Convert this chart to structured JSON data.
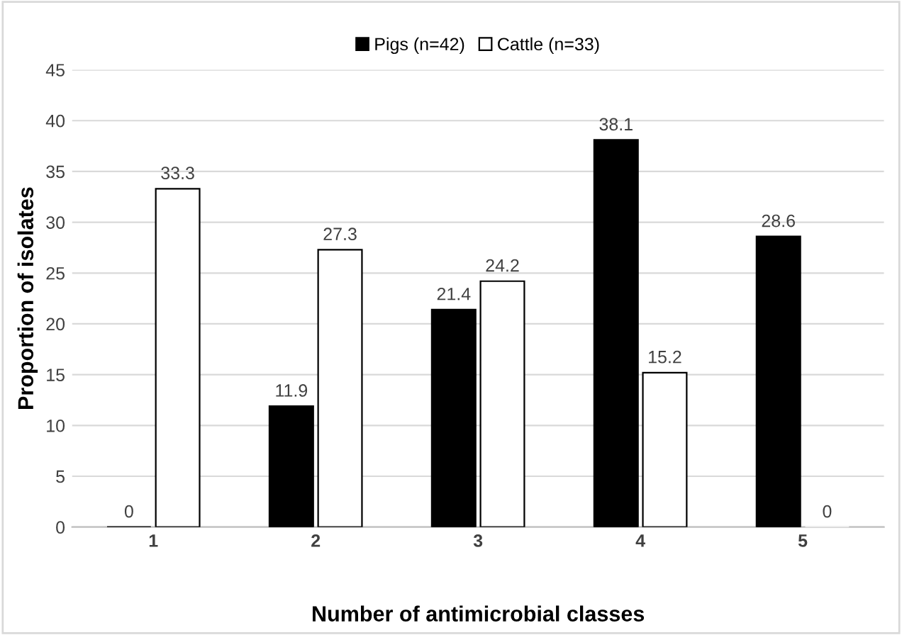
{
  "chart_data": {
    "type": "bar",
    "xlabel": "Number of antimicrobial classes",
    "ylabel": "Proportion of isolates",
    "categories": [
      "1",
      "2",
      "3",
      "4",
      "5"
    ],
    "series": [
      {
        "name": "Pigs (n=42)",
        "color": "#000000",
        "values": [
          0,
          11.9,
          21.4,
          38.1,
          28.6
        ]
      },
      {
        "name": "Cattle (n=33)",
        "color": "#ffffff",
        "values": [
          33.3,
          27.3,
          24.2,
          15.2,
          0
        ]
      }
    ],
    "ylim": [
      0,
      45
    ],
    "yticks": [
      0,
      5,
      10,
      15,
      20,
      25,
      30,
      35,
      40,
      45
    ],
    "grid": "y",
    "legend": "top",
    "data_labels": true
  }
}
